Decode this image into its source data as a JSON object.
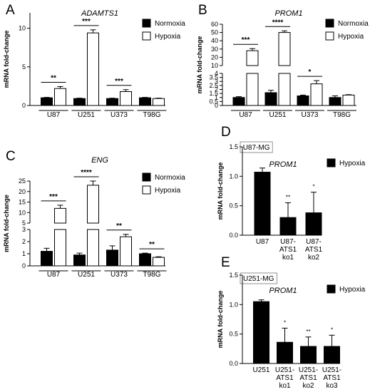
{
  "chart_data": [
    {
      "panel": "A",
      "type": "bar",
      "title": "ADAMTS1",
      "ylabel": "mRNA fold-change",
      "categories": [
        "U87",
        "U251",
        "U373",
        "T98G"
      ],
      "series": [
        {
          "name": "Normoxia",
          "values": [
            1.0,
            0.9,
            0.9,
            1.0
          ],
          "errors": [
            0.05,
            0.05,
            0.05,
            0.05
          ]
        },
        {
          "name": "Hypoxia",
          "values": [
            2.2,
            9.4,
            1.8,
            0.9
          ],
          "errors": [
            0.25,
            0.4,
            0.25,
            0.05
          ]
        }
      ],
      "yticks": [
        0,
        5,
        10
      ],
      "ylim": [
        0,
        12
      ],
      "significance": [
        "**",
        "***",
        "***",
        ""
      ],
      "legend": "top-right"
    },
    {
      "panel": "B",
      "type": "bar",
      "title": "PROM1",
      "ylabel": "mRNA fold-change",
      "categories": [
        "U87",
        "U251",
        "U373",
        "T98G"
      ],
      "broken_axis": {
        "lower_ylim": [
          0,
          4
        ],
        "lower_yticks": [
          0,
          0.5,
          1,
          1.5,
          2,
          2.5,
          3,
          3.5,
          4
        ],
        "upper_ylim": [
          10,
          60
        ],
        "upper_yticks": [
          10,
          20,
          30,
          40,
          50,
          60
        ]
      },
      "series": [
        {
          "name": "Normoxia",
          "values": [
            1.0,
            1.6,
            1.2,
            1.0
          ],
          "errors": [
            0.1,
            0.3,
            0.1,
            0.2
          ]
        },
        {
          "name": "Hypoxia",
          "values": [
            28,
            50,
            2.7,
            1.3
          ],
          "errors": [
            2.5,
            2.0,
            0.4,
            0.05
          ]
        }
      ],
      "significance": [
        "***",
        "****",
        "*",
        ""
      ],
      "legend": "top-right"
    },
    {
      "panel": "C",
      "type": "bar",
      "title": "ENG",
      "ylabel": "mRNA fold-change",
      "categories": [
        "U87",
        "U251",
        "U373",
        "T98G"
      ],
      "broken_axis": {
        "lower_ylim": [
          0,
          3
        ],
        "lower_yticks": [
          0,
          1,
          2,
          3
        ],
        "upper_ylim": [
          5,
          25
        ],
        "upper_yticks": [
          5,
          10,
          15,
          20,
          25
        ]
      },
      "series": [
        {
          "name": "Normoxia",
          "values": [
            1.2,
            0.9,
            1.3,
            1.0
          ],
          "errors": [
            0.25,
            0.15,
            0.35,
            0.05
          ]
        },
        {
          "name": "Hypoxia",
          "values": [
            12,
            23,
            2.4,
            0.7
          ],
          "errors": [
            1.5,
            2.0,
            0.2,
            0.05
          ]
        }
      ],
      "significance": [
        "***",
        "****",
        "**",
        "**"
      ],
      "legend": "top-right"
    },
    {
      "panel": "D",
      "type": "bar",
      "title": "PROM1",
      "tag": "U87-MG",
      "ylabel": "mRNA fold-change",
      "categories": [
        "U87",
        "U87-\nATS1\nko1",
        "U87-\nATS1\nko2"
      ],
      "series": [
        {
          "name": "Hypoxia",
          "values": [
            1.07,
            0.3,
            0.38
          ],
          "errors": [
            0.07,
            0.25,
            0.35
          ]
        }
      ],
      "yticks": [
        0.0,
        0.5,
        1.0,
        1.5
      ],
      "ylim": [
        0,
        1.5
      ],
      "significance": [
        "",
        "**",
        "*"
      ],
      "legend": "top-right"
    },
    {
      "panel": "E",
      "type": "bar",
      "title": "PROM1",
      "tag": "U251-MG",
      "ylabel": "mRNA fold-change",
      "categories": [
        "U251",
        "U251-\nATS1\nko1",
        "U251-\nATS1\nko2",
        "U251-\nATS1\nko3"
      ],
      "series": [
        {
          "name": "Hypoxia",
          "values": [
            1.05,
            0.36,
            0.29,
            0.29
          ],
          "errors": [
            0.03,
            0.24,
            0.16,
            0.19
          ]
        }
      ],
      "yticks": [
        0.0,
        0.5,
        1.0,
        1.5
      ],
      "ylim": [
        0,
        1.5
      ],
      "significance": [
        "",
        "*",
        "**",
        "*"
      ],
      "legend": "top-right"
    }
  ]
}
